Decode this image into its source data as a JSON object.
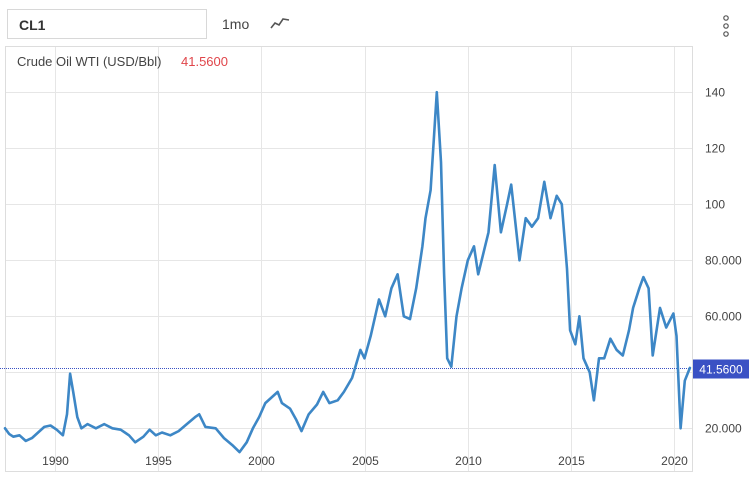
{
  "toolbar": {
    "symbol": "CL1",
    "period": "1mo",
    "chart_type_icon": "line-chart-icon",
    "menu_icon": "vertical-dots-icon"
  },
  "header": {
    "name": "Crude Oil WTI (USD/Bbl)",
    "last_value": "41.5600"
  },
  "colors": {
    "line": "#3d87c6",
    "last_value_text": "#e0454a",
    "price_badge": "#3a51c4",
    "grid": "#e6e6e6",
    "axis_text": "#444444"
  },
  "chart_data": {
    "type": "line",
    "title": "Crude Oil WTI (USD/Bbl)",
    "xlabel": "",
    "ylabel": "",
    "xlim": [
      1987.6,
      2020.85
    ],
    "ylim": [
      4.4,
      156.5
    ],
    "x_ticks": [
      "1990",
      "1995",
      "2000",
      "2005",
      "2010",
      "2015",
      "2020"
    ],
    "x_tick_values": [
      1990,
      1995,
      2000,
      2005,
      2010,
      2015,
      2020
    ],
    "y_ticks": [
      "20.000",
      "",
      "60.000",
      "80.000",
      "100",
      "120",
      "140"
    ],
    "y_tick_values": [
      20,
      40,
      60,
      80,
      100,
      120,
      140
    ],
    "last_price_label": "41.5600",
    "last_price": 41.56,
    "grid": true,
    "series": [
      {
        "name": "",
        "points": [
          [
            1987.6,
            20.0
          ],
          [
            1987.8,
            18.0
          ],
          [
            1988.0,
            17.0
          ],
          [
            1988.3,
            17.5
          ],
          [
            1988.6,
            15.5
          ],
          [
            1988.9,
            16.5
          ],
          [
            1989.2,
            18.5
          ],
          [
            1989.5,
            20.5
          ],
          [
            1989.8,
            21.0
          ],
          [
            1990.1,
            19.5
          ],
          [
            1990.4,
            17.5
          ],
          [
            1990.6,
            25.0
          ],
          [
            1990.75,
            39.5
          ],
          [
            1990.9,
            33.0
          ],
          [
            1991.1,
            24.0
          ],
          [
            1991.3,
            20.0
          ],
          [
            1991.6,
            21.5
          ],
          [
            1992.0,
            20.0
          ],
          [
            1992.4,
            21.5
          ],
          [
            1992.8,
            20.0
          ],
          [
            1993.2,
            19.5
          ],
          [
            1993.6,
            17.5
          ],
          [
            1993.9,
            15.0
          ],
          [
            1994.3,
            17.0
          ],
          [
            1994.6,
            19.5
          ],
          [
            1994.9,
            17.5
          ],
          [
            1995.2,
            18.5
          ],
          [
            1995.6,
            17.5
          ],
          [
            1996.0,
            19.0
          ],
          [
            1996.4,
            21.5
          ],
          [
            1996.8,
            24.0
          ],
          [
            1997.0,
            25.0
          ],
          [
            1997.3,
            20.5
          ],
          [
            1997.8,
            20.0
          ],
          [
            1998.2,
            16.5
          ],
          [
            1998.6,
            14.0
          ],
          [
            1998.95,
            11.5
          ],
          [
            1999.3,
            15.0
          ],
          [
            1999.6,
            20.0
          ],
          [
            1999.9,
            24.0
          ],
          [
            2000.2,
            29.0
          ],
          [
            2000.5,
            31.0
          ],
          [
            2000.8,
            33.0
          ],
          [
            2001.0,
            29.0
          ],
          [
            2001.4,
            27.0
          ],
          [
            2001.7,
            23.0
          ],
          [
            2001.95,
            19.0
          ],
          [
            2002.3,
            25.0
          ],
          [
            2002.7,
            28.5
          ],
          [
            2003.0,
            33.0
          ],
          [
            2003.3,
            29.0
          ],
          [
            2003.7,
            30.0
          ],
          [
            2004.0,
            33.0
          ],
          [
            2004.4,
            38.0
          ],
          [
            2004.8,
            48.0
          ],
          [
            2005.0,
            45.0
          ],
          [
            2005.3,
            53.0
          ],
          [
            2005.7,
            66.0
          ],
          [
            2006.0,
            60.0
          ],
          [
            2006.3,
            70.0
          ],
          [
            2006.6,
            75.0
          ],
          [
            2006.9,
            60.0
          ],
          [
            2007.2,
            59.0
          ],
          [
            2007.5,
            70.0
          ],
          [
            2007.8,
            85.0
          ],
          [
            2007.95,
            95.0
          ],
          [
            2008.2,
            105.0
          ],
          [
            2008.5,
            140.0
          ],
          [
            2008.7,
            115.0
          ],
          [
            2008.85,
            75.0
          ],
          [
            2009.0,
            45.0
          ],
          [
            2009.2,
            42.0
          ],
          [
            2009.45,
            60.0
          ],
          [
            2009.7,
            70.0
          ],
          [
            2010.0,
            80.0
          ],
          [
            2010.3,
            85.0
          ],
          [
            2010.5,
            75.0
          ],
          [
            2010.8,
            84.0
          ],
          [
            2011.0,
            90.0
          ],
          [
            2011.3,
            114.0
          ],
          [
            2011.6,
            90.0
          ],
          [
            2011.9,
            100.0
          ],
          [
            2012.1,
            107.0
          ],
          [
            2012.5,
            80.0
          ],
          [
            2012.8,
            95.0
          ],
          [
            2013.1,
            92.0
          ],
          [
            2013.4,
            95.0
          ],
          [
            2013.7,
            108.0
          ],
          [
            2014.0,
            95.0
          ],
          [
            2014.3,
            103.0
          ],
          [
            2014.55,
            100.0
          ],
          [
            2014.8,
            77.0
          ],
          [
            2014.95,
            55.0
          ],
          [
            2015.2,
            50.0
          ],
          [
            2015.4,
            60.0
          ],
          [
            2015.6,
            45.0
          ],
          [
            2015.9,
            40.0
          ],
          [
            2016.1,
            30.0
          ],
          [
            2016.35,
            45.0
          ],
          [
            2016.6,
            45.0
          ],
          [
            2016.9,
            52.0
          ],
          [
            2017.2,
            48.0
          ],
          [
            2017.5,
            46.0
          ],
          [
            2017.8,
            55.0
          ],
          [
            2018.0,
            63.0
          ],
          [
            2018.3,
            70.0
          ],
          [
            2018.5,
            74.0
          ],
          [
            2018.75,
            70.0
          ],
          [
            2018.95,
            46.0
          ],
          [
            2019.3,
            63.0
          ],
          [
            2019.6,
            56.0
          ],
          [
            2019.95,
            61.0
          ],
          [
            2020.1,
            53.0
          ],
          [
            2020.3,
            20.0
          ],
          [
            2020.5,
            37.0
          ],
          [
            2020.75,
            41.56
          ]
        ]
      }
    ]
  }
}
